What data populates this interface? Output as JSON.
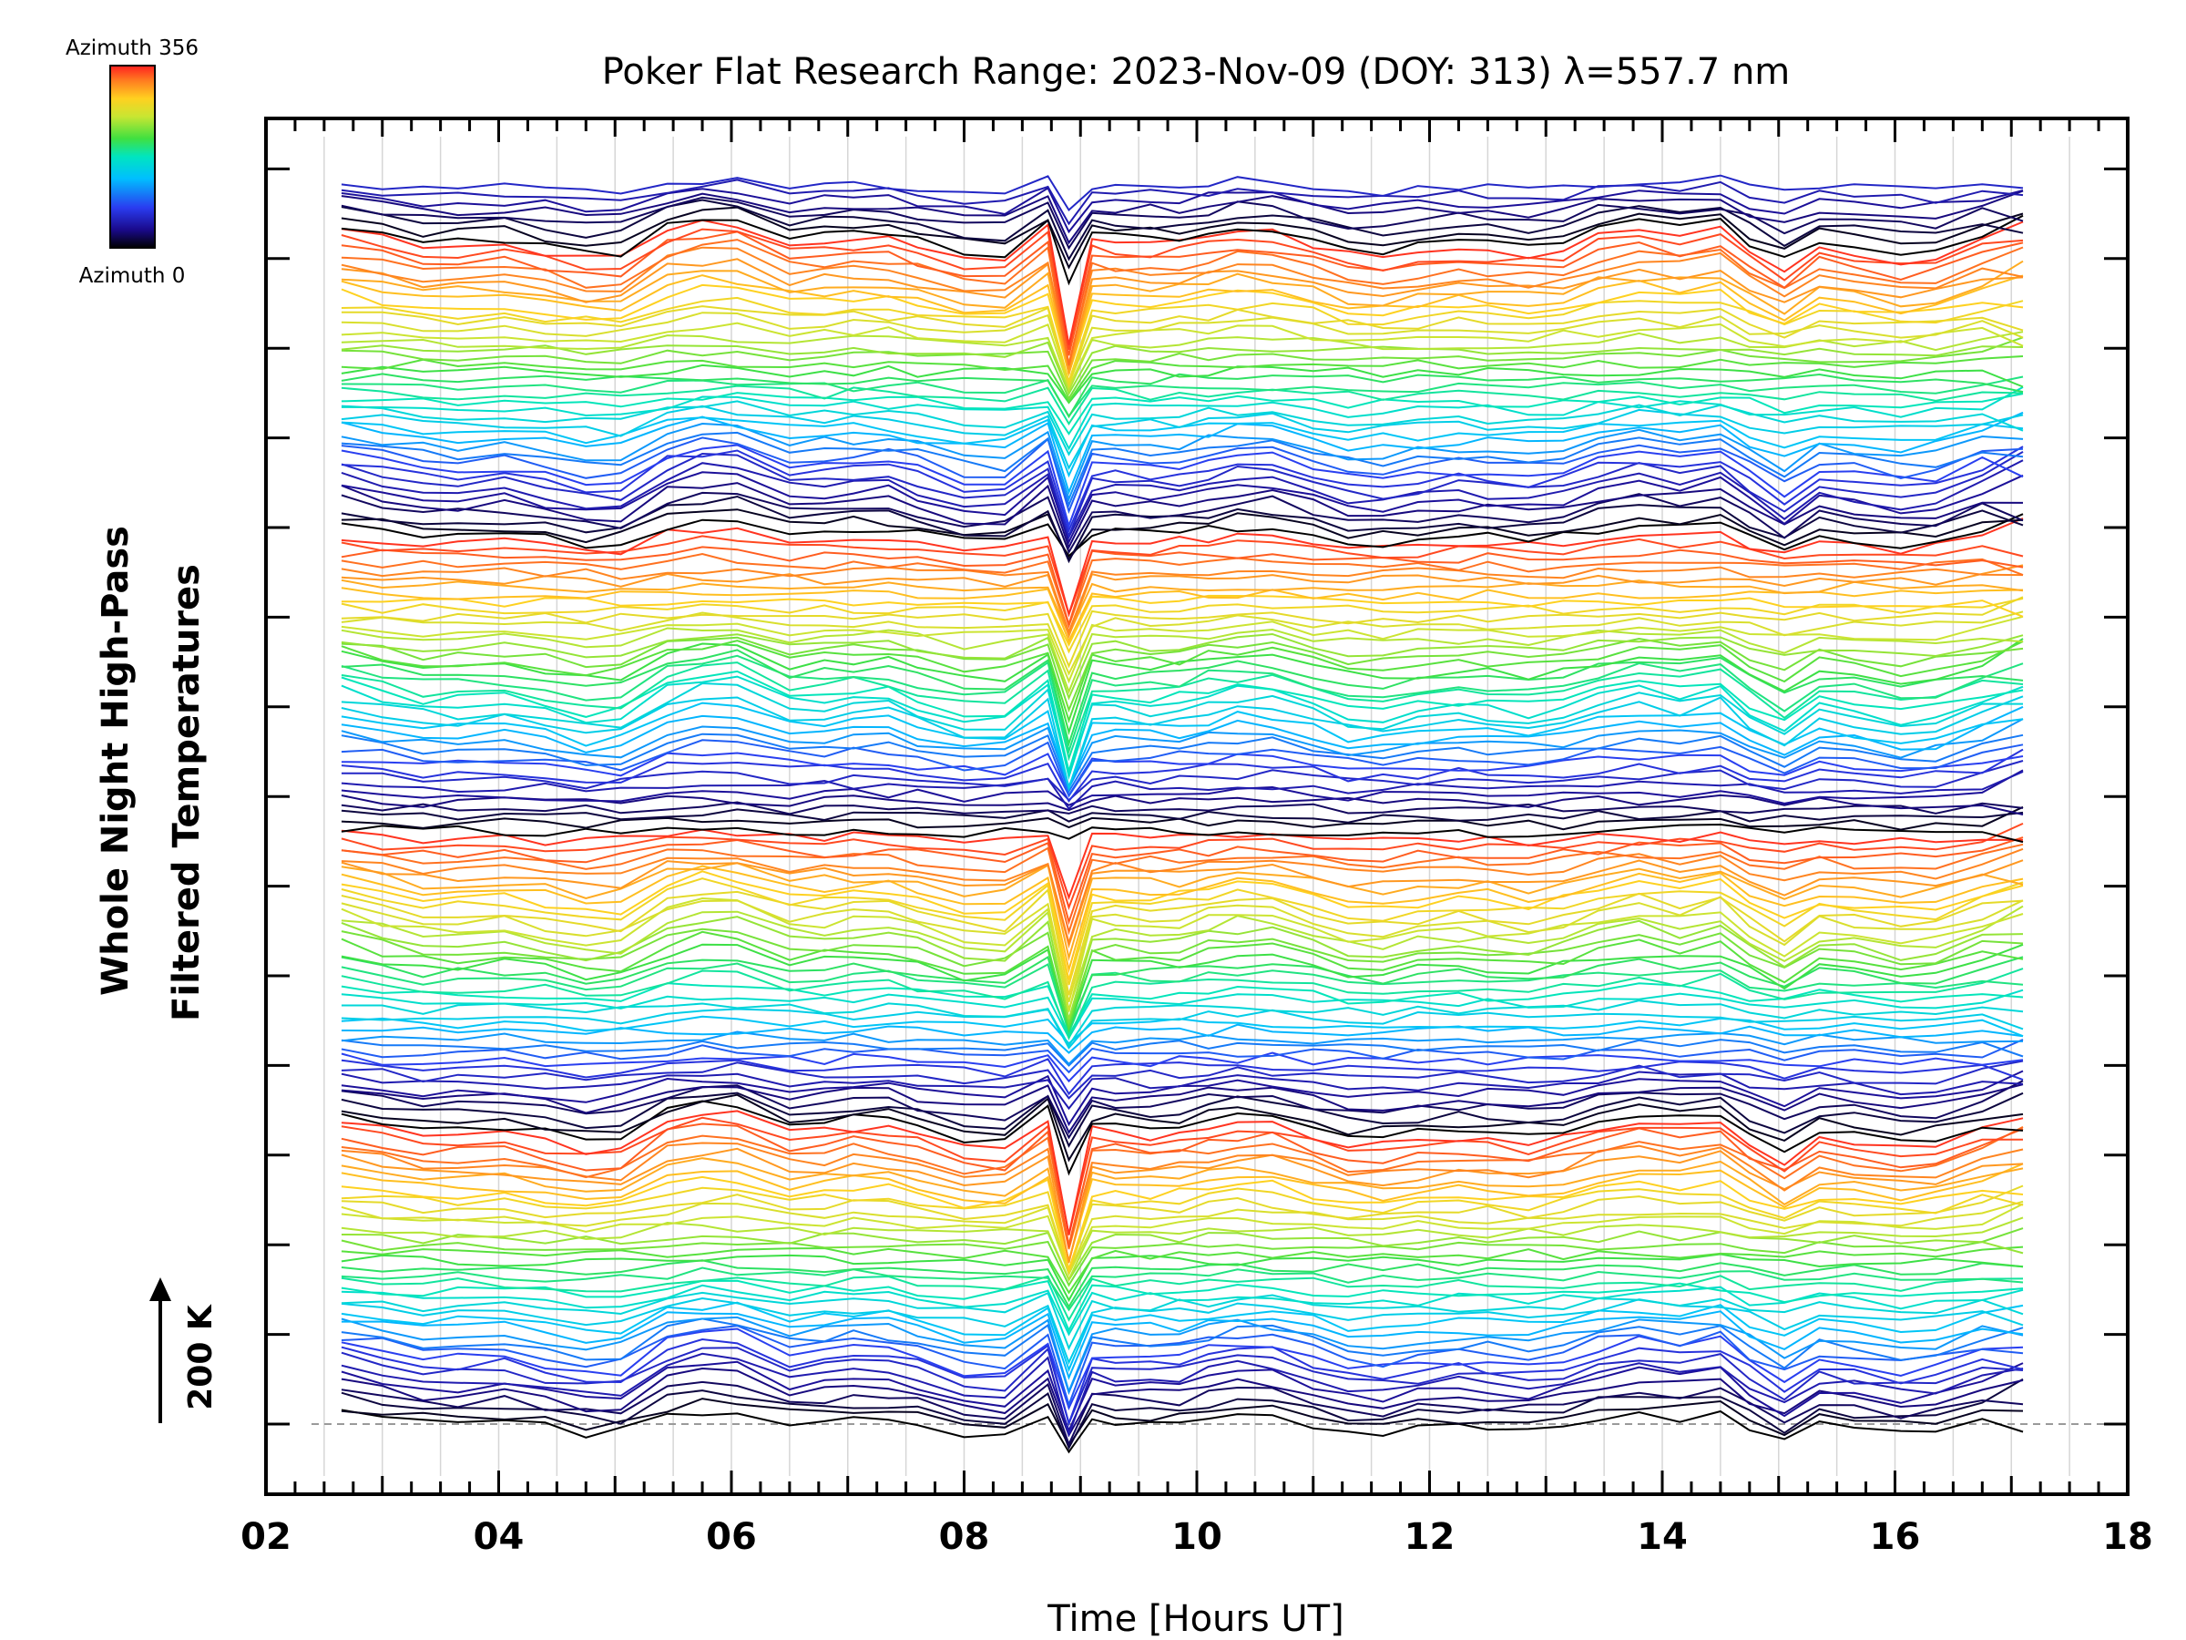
{
  "chart_data": {
    "type": "line",
    "title": "Poker Flat Research Range: 2023-Nov-09 (DOY: 313) λ=557.7 nm",
    "xlabel": "Time [Hours UT]",
    "ylabel_line1": "Whole Night High-Pass",
    "ylabel_line2": "Filtered Temperatures",
    "xlim": [
      2,
      18
    ],
    "x_tick_labels": [
      "02",
      "04",
      "06",
      "08",
      "10",
      "12",
      "14",
      "16",
      "18"
    ],
    "scale_label": "200 K",
    "colorbar": {
      "top_label": "Azimuth 356",
      "bottom_label": "Azimuth 0",
      "colormap": "rainbow",
      "colors": [
        "#000000",
        "#1a0a8c",
        "#2a3cf0",
        "#00bfff",
        "#00e5c0",
        "#40e040",
        "#c8e632",
        "#ffd020",
        "#ff7a20",
        "#ff2020"
      ]
    },
    "x_samples": [
      2.65,
      3.0,
      3.35,
      3.65,
      4.05,
      4.4,
      4.75,
      5.05,
      5.45,
      5.75,
      6.05,
      6.5,
      6.8,
      7.05,
      7.35,
      7.6,
      8.0,
      8.35,
      8.72,
      8.9,
      9.1,
      9.3,
      9.6,
      9.85,
      10.1,
      10.35,
      10.65,
      11.0,
      11.3,
      11.6,
      11.9,
      12.25,
      12.5,
      12.85,
      13.15,
      13.45,
      13.8,
      14.15,
      14.5,
      14.75,
      15.05,
      15.35,
      15.65,
      16.05,
      16.35,
      16.75,
      17.1
    ],
    "series_count": 168,
    "curve_spacing_K": 35,
    "annotations": {
      "event_time_ut": 8.8,
      "events": [
        "coherent dip near 08:50 UT",
        "dip near 14:5 UT to 15:00 UT"
      ]
    },
    "grid": "vertical dotted",
    "legend": "colorbar top-left"
  }
}
